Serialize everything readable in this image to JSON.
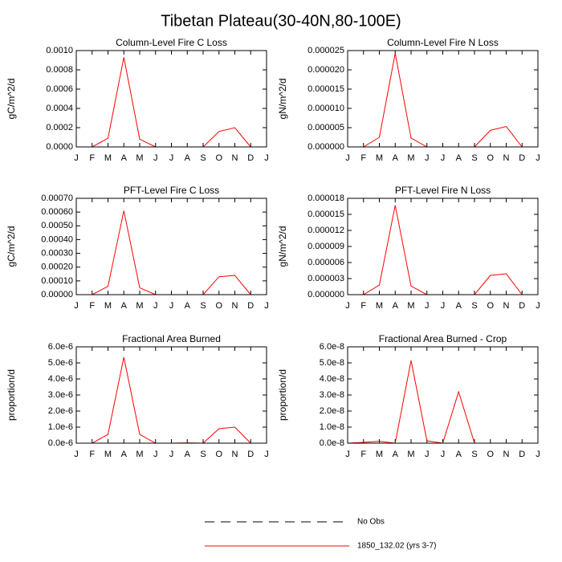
{
  "title": "Tibetan Plateau(30-40N,80-100E)",
  "legend": [
    {
      "name": "No Obs",
      "color": "#000000",
      "dashed": true
    },
    {
      "name": "1850_132.02 (yrs 3-7)",
      "color": "#ff0000",
      "dashed": false
    }
  ],
  "chart_data": [
    {
      "type": "line",
      "title": "Column-Level Fire C Loss",
      "ylabel": "gC/m^2/d",
      "categories": [
        "J",
        "F",
        "M",
        "A",
        "M",
        "J",
        "J",
        "A",
        "S",
        "O",
        "N",
        "D",
        "J"
      ],
      "values": [
        0,
        0,
        9e-05,
        0.00093,
        8e-05,
        0,
        0,
        0,
        0,
        0.00016,
        0.0002,
        0,
        null
      ],
      "color": "#ff0000",
      "ylim": [
        0,
        0.001
      ],
      "yticks": [
        {
          "value": 0,
          "label": "0.0000"
        },
        0.0002,
        0.0004,
        0.0006,
        0.0008,
        {
          "value": 0.001,
          "label": "0.0010"
        }
      ]
    },
    {
      "type": "line",
      "title": "Column-Level Fire N Loss",
      "ylabel": "gN/m^2/d",
      "categories": [
        "J",
        "F",
        "M",
        "A",
        "M",
        "J",
        "J",
        "A",
        "S",
        "O",
        "N",
        "D",
        "J"
      ],
      "values": [
        0,
        0,
        2.5e-06,
        2.43e-05,
        2.3e-06,
        0,
        0,
        0,
        0,
        4.3e-06,
        5.3e-06,
        0,
        null
      ],
      "color": "#ff0000",
      "ylim": [
        0,
        2.5e-05
      ],
      "yticks": [
        {
          "value": 0,
          "label": "0.000000"
        },
        5e-06,
        {
          "value": 1e-05,
          "label": "0.000010"
        },
        1.5e-05,
        {
          "value": 2e-05,
          "label": "0.000020"
        },
        2.5e-05
      ]
    },
    {
      "type": "line",
      "title": "PFT-Level Fire C Loss",
      "ylabel": "gC/m^2/d",
      "categories": [
        "J",
        "F",
        "M",
        "A",
        "M",
        "J",
        "J",
        "A",
        "S",
        "O",
        "N",
        "D",
        "J"
      ],
      "values": [
        0,
        0,
        6e-05,
        0.00061,
        5e-05,
        0,
        0,
        0,
        0,
        0.00013,
        0.00014,
        0,
        null
      ],
      "color": "#ff0000",
      "ylim": [
        0,
        0.0007
      ],
      "yticks": [
        {
          "value": 0,
          "label": "0.00000"
        },
        {
          "value": 0.0001,
          "label": "0.00010"
        },
        {
          "value": 0.0002,
          "label": "0.00020"
        },
        {
          "value": 0.0003,
          "label": "0.00030"
        },
        {
          "value": 0.0004,
          "label": "0.00040"
        },
        {
          "value": 0.0005,
          "label": "0.00050"
        },
        {
          "value": 0.0006,
          "label": "0.00060"
        },
        {
          "value": 0.0007,
          "label": "0.00070"
        }
      ]
    },
    {
      "type": "line",
      "title": "PFT-Level Fire N Loss",
      "ylabel": "gN/m^2/d",
      "categories": [
        "J",
        "F",
        "M",
        "A",
        "M",
        "J",
        "J",
        "A",
        "S",
        "O",
        "N",
        "D",
        "J"
      ],
      "values": [
        0,
        0,
        1.8e-06,
        1.67e-05,
        1.6e-06,
        0,
        0,
        0,
        0,
        3.6e-06,
        3.9e-06,
        0,
        null
      ],
      "color": "#ff0000",
      "ylim": [
        0,
        1.8e-05
      ],
      "yticks": [
        {
          "value": 0,
          "label": "0.000000"
        },
        3e-06,
        6e-06,
        9e-06,
        {
          "value": 1.2e-05,
          "label": "0.000012"
        },
        1.5e-05,
        1.8e-05
      ]
    },
    {
      "type": "line",
      "title": "Fractional Area Burned",
      "ylabel": "proportion/d",
      "categories": [
        "J",
        "F",
        "M",
        "A",
        "M",
        "J",
        "J",
        "A",
        "S",
        "O",
        "N",
        "D",
        "J"
      ],
      "values": [
        0,
        0,
        5.5e-07,
        5.35e-06,
        5.5e-07,
        0,
        0,
        2e-08,
        0,
        9e-07,
        1e-06,
        0,
        null
      ],
      "color": "#ff0000",
      "ylim": [
        0,
        6e-06
      ],
      "yticks": [
        {
          "value": 0,
          "label": "0.0e-6"
        },
        {
          "value": 1e-06,
          "label": "1.0e-6"
        },
        {
          "value": 2e-06,
          "label": "2.0e-6"
        },
        {
          "value": 3e-06,
          "label": "3.0e-6"
        },
        {
          "value": 4e-06,
          "label": "4.0e-6"
        },
        {
          "value": 5e-06,
          "label": "5.0e-6"
        },
        {
          "value": 6e-06,
          "label": "6.0e-6"
        }
      ]
    },
    {
      "type": "line",
      "title": "Fractional Area Burned - Crop",
      "ylabel": "proportion/d",
      "categories": [
        "J",
        "F",
        "M",
        "A",
        "M",
        "J",
        "J",
        "A",
        "S",
        "O",
        "N",
        "D",
        "J"
      ],
      "values": [
        0,
        5e-10,
        1.2e-09,
        0,
        5.15e-08,
        1.5e-09,
        0,
        3.2e-08,
        0,
        0,
        0,
        0,
        null
      ],
      "color": "#ff0000",
      "ylim": [
        0,
        6e-08
      ],
      "yticks": [
        {
          "value": 0,
          "label": "0.0e-8"
        },
        {
          "value": 1e-08,
          "label": "1.0e-8"
        },
        {
          "value": 2e-08,
          "label": "2.0e-8"
        },
        {
          "value": 3e-08,
          "label": "3.0e-8"
        },
        {
          "value": 4e-08,
          "label": "4.0e-8"
        },
        {
          "value": 5e-08,
          "label": "5.0e-8"
        },
        {
          "value": 6e-08,
          "label": "6.0e-8"
        }
      ]
    }
  ]
}
